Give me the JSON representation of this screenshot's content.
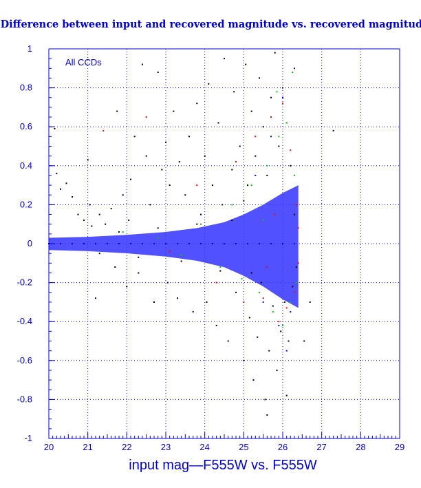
{
  "chart_data": {
    "type": "scatter",
    "title": "Difference between input and recovered magnitude vs. recovered magnitude",
    "xlabel": "input mag—F555W vs. F555W",
    "ylabel": "",
    "annotation": "All CCDs",
    "xlim": [
      20,
      29
    ],
    "ylim": [
      -1,
      1
    ],
    "x_ticks": [
      "20",
      "21",
      "22",
      "23",
      "24",
      "25",
      "26",
      "27",
      "28",
      "29"
    ],
    "y_ticks": [
      "1",
      "0.8",
      "0.6",
      "0.4",
      "0.2",
      "0",
      "-0.2",
      "-0.4",
      "-0.6",
      "-0.8",
      "-1"
    ],
    "grid": true,
    "series": [
      {
        "color": "#000000",
        "points": [
          [
            20.15,
            0.59
          ],
          [
            20.2,
            0.36
          ],
          [
            20.3,
            0.28
          ],
          [
            20.45,
            0.31
          ],
          [
            20.6,
            0.24
          ],
          [
            20.75,
            0.15
          ],
          [
            20.9,
            0.12
          ],
          [
            21.0,
            0.43
          ],
          [
            21.05,
            0.2
          ],
          [
            21.1,
            0.09
          ],
          [
            21.2,
            -0.28
          ],
          [
            21.3,
            0.15
          ],
          [
            21.45,
            0.1
          ],
          [
            21.6,
            0.18
          ],
          [
            21.7,
            -0.12
          ],
          [
            21.75,
            0.68
          ],
          [
            21.9,
            0.25
          ],
          [
            22.0,
            -0.22
          ],
          [
            22.05,
            0.12
          ],
          [
            22.1,
            0.33
          ],
          [
            22.2,
            0.55
          ],
          [
            22.3,
            -0.15
          ],
          [
            22.4,
            0.92
          ],
          [
            22.5,
            0.45
          ],
          [
            22.6,
            0.2
          ],
          [
            22.7,
            -0.3
          ],
          [
            22.8,
            0.88
          ],
          [
            22.9,
            0.38
          ],
          [
            23.0,
            0.52
          ],
          [
            23.05,
            -0.2
          ],
          [
            23.1,
            0.3
          ],
          [
            23.2,
            0.68
          ],
          [
            23.3,
            -0.28
          ],
          [
            23.35,
            0.42
          ],
          [
            23.5,
            0.25
          ],
          [
            23.6,
            0.55
          ],
          [
            23.7,
            -0.35
          ],
          [
            23.8,
            0.72
          ],
          [
            23.9,
            0.15
          ],
          [
            24.0,
            0.45
          ],
          [
            24.05,
            -0.3
          ],
          [
            24.1,
            0.82
          ],
          [
            24.2,
            0.3
          ],
          [
            24.3,
            -0.42
          ],
          [
            24.35,
            0.62
          ],
          [
            24.45,
            0.2
          ],
          [
            24.5,
            0.95
          ],
          [
            24.6,
            -0.5
          ],
          [
            24.7,
            0.38
          ],
          [
            24.75,
            0.78
          ],
          [
            24.8,
            -0.25
          ],
          [
            24.9,
            0.5
          ],
          [
            25.0,
            -0.6
          ],
          [
            25.05,
            0.92
          ],
          [
            25.1,
            0.3
          ],
          [
            25.15,
            -0.38
          ],
          [
            25.2,
            0.68
          ],
          [
            25.25,
            -0.7
          ],
          [
            25.3,
            0.45
          ],
          [
            25.35,
            -0.48
          ],
          [
            25.4,
            0.85
          ],
          [
            25.45,
            -0.2
          ],
          [
            25.5,
            0.6
          ],
          [
            25.55,
            -0.8
          ],
          [
            25.6,
            0.35
          ],
          [
            25.65,
            -0.55
          ],
          [
            25.7,
            0.75
          ],
          [
            25.75,
            -0.32
          ],
          [
            25.8,
            0.98
          ],
          [
            25.85,
            -0.65
          ],
          [
            25.9,
            0.5
          ],
          [
            25.95,
            -0.45
          ],
          [
            26.0,
            0.8
          ],
          [
            26.05,
            -0.3
          ],
          [
            26.1,
            0.62
          ],
          [
            26.15,
            -0.5
          ],
          [
            26.2,
            0.4
          ],
          [
            26.25,
            -0.22
          ],
          [
            26.3,
            0.15
          ],
          [
            26.35,
            -0.12
          ],
          [
            25.0,
            0.22
          ],
          [
            25.2,
            -0.15
          ],
          [
            24.7,
            0.12
          ],
          [
            24.4,
            -0.14
          ],
          [
            23.8,
            0.1
          ],
          [
            23.4,
            -0.09
          ],
          [
            22.8,
            0.08
          ],
          [
            22.3,
            -0.07
          ],
          [
            21.8,
            0.06
          ],
          [
            21.3,
            -0.05
          ],
          [
            26.1,
            -0.78
          ],
          [
            25.6,
            -0.88
          ],
          [
            26.55,
            -0.5
          ],
          [
            26.7,
            -0.3
          ],
          [
            27.3,
            0.58
          ]
        ]
      },
      {
        "color": "#ff0000",
        "points": [
          [
            21.4,
            0.58
          ],
          [
            22.5,
            0.65
          ],
          [
            23.1,
            -0.04
          ],
          [
            23.8,
            0.3
          ],
          [
            24.3,
            -0.2
          ],
          [
            24.8,
            0.42
          ],
          [
            25.0,
            -0.3
          ],
          [
            25.3,
            0.55
          ],
          [
            25.5,
            -0.28
          ],
          [
            25.7,
            0.65
          ],
          [
            25.9,
            -0.4
          ],
          [
            26.0,
            0.72
          ],
          [
            26.1,
            -0.33
          ],
          [
            26.2,
            0.48
          ],
          [
            26.3,
            -0.25
          ],
          [
            26.35,
            0.2
          ],
          [
            25.8,
            0.15
          ],
          [
            25.6,
            -0.12
          ],
          [
            26.4,
            0.08
          ],
          [
            26.4,
            -0.1
          ]
        ]
      },
      {
        "color": "#00cc00",
        "points": [
          [
            21.9,
            0.06
          ],
          [
            22.8,
            0.03
          ],
          [
            23.4,
            -0.06
          ],
          [
            23.9,
            0.1
          ],
          [
            24.4,
            -0.12
          ],
          [
            24.7,
            0.2
          ],
          [
            24.95,
            -0.18
          ],
          [
            25.2,
            0.3
          ],
          [
            25.4,
            -0.25
          ],
          [
            25.6,
            0.4
          ],
          [
            25.75,
            -0.35
          ],
          [
            25.9,
            0.55
          ],
          [
            26.0,
            -0.42
          ],
          [
            26.1,
            0.62
          ],
          [
            26.2,
            -0.3
          ],
          [
            26.3,
            0.35
          ],
          [
            26.35,
            -0.2
          ],
          [
            25.85,
            0.78
          ],
          [
            26.25,
            0.88
          ],
          [
            25.5,
            0.12
          ]
        ]
      },
      {
        "color": "#0000ff",
        "points": [
          [
            20.0,
            0.0
          ],
          [
            20.3,
            0.0
          ],
          [
            20.6,
            0.0
          ],
          [
            20.9,
            0.0
          ],
          [
            21.2,
            0.0
          ],
          [
            21.5,
            0.0
          ],
          [
            21.8,
            0.0
          ],
          [
            22.1,
            0.0
          ],
          [
            22.4,
            0.0
          ],
          [
            22.7,
            0.0
          ],
          [
            23.0,
            0.0
          ],
          [
            23.3,
            0.0
          ],
          [
            23.6,
            0.0
          ],
          [
            23.9,
            0.0
          ],
          [
            24.2,
            0.0
          ],
          [
            24.5,
            0.0
          ],
          [
            24.8,
            0.0
          ],
          [
            25.1,
            0.0
          ],
          [
            25.4,
            0.0
          ],
          [
            25.7,
            0.0
          ],
          [
            26.0,
            0.0
          ],
          [
            26.3,
            0.0
          ],
          [
            25.3,
            0.35
          ],
          [
            25.7,
            0.55
          ],
          [
            26.0,
            0.75
          ],
          [
            26.2,
            -0.35
          ],
          [
            25.9,
            -0.42
          ],
          [
            25.5,
            -0.3
          ],
          [
            26.3,
            0.9
          ],
          [
            26.1,
            -0.55
          ]
        ]
      }
    ]
  }
}
